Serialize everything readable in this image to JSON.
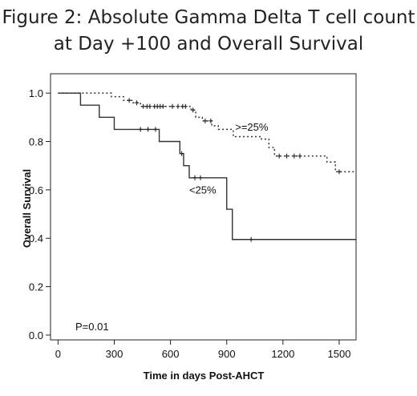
{
  "chart_data": {
    "type": "line",
    "subtype": "kaplan-meier",
    "title_lines": [
      "Figure 2: Absolute Gamma Delta T cell count",
      "at Day +100 and Overall Survival"
    ],
    "xlabel": "Time in days Post-AHCT",
    "ylabel": "Overall Survival",
    "xlim": [
      -40,
      1590
    ],
    "ylim": [
      -0.02,
      1.08
    ],
    "x_ticks": [
      0,
      300,
      600,
      900,
      1200,
      1500
    ],
    "y_ticks": [
      0.0,
      0.2,
      0.4,
      0.6,
      0.8,
      1.0
    ],
    "y_tick_labels": [
      "0.0",
      "0.2",
      "0.4",
      "0.6",
      "0.8",
      "1.0"
    ],
    "grid": false,
    "annotation": "P=0.01",
    "series": [
      {
        "name": ">=25%",
        "line_style": "dotted",
        "steps": [
          [
            0,
            1.0
          ],
          [
            260,
            1.0
          ],
          [
            285,
            0.985
          ],
          [
            350,
            0.97
          ],
          [
            400,
            0.96
          ],
          [
            440,
            0.945
          ],
          [
            700,
            0.945
          ],
          [
            710,
            0.93
          ],
          [
            735,
            0.9
          ],
          [
            770,
            0.885
          ],
          [
            820,
            0.865
          ],
          [
            855,
            0.85
          ],
          [
            935,
            0.82
          ],
          [
            1050,
            0.82
          ],
          [
            1085,
            0.81
          ],
          [
            1125,
            0.775
          ],
          [
            1155,
            0.74
          ],
          [
            1405,
            0.74
          ],
          [
            1435,
            0.715
          ],
          [
            1480,
            0.675
          ],
          [
            1590,
            0.675
          ]
        ],
        "censor_x": [
          380,
          420,
          455,
          475,
          490,
          515,
          530,
          545,
          560,
          610,
          640,
          665,
          680,
          720,
          785,
          815,
          1180,
          1220,
          1260,
          1290,
          1500
        ]
      },
      {
        "name": "<25%",
        "line_style": "solid",
        "steps": [
          [
            0,
            1.0
          ],
          [
            120,
            1.0
          ],
          [
            120,
            0.95
          ],
          [
            220,
            0.95
          ],
          [
            220,
            0.9
          ],
          [
            300,
            0.9
          ],
          [
            300,
            0.85
          ],
          [
            540,
            0.85
          ],
          [
            540,
            0.8
          ],
          [
            650,
            0.8
          ],
          [
            650,
            0.75
          ],
          [
            670,
            0.75
          ],
          [
            670,
            0.7
          ],
          [
            700,
            0.7
          ],
          [
            700,
            0.65
          ],
          [
            900,
            0.65
          ],
          [
            900,
            0.52
          ],
          [
            930,
            0.52
          ],
          [
            930,
            0.395
          ],
          [
            1590,
            0.395
          ]
        ],
        "censor_x": [
          440,
          480,
          520,
          660,
          730,
          760,
          1030
        ]
      }
    ],
    "series_labels": [
      {
        "text": ">=25%",
        "x": 945,
        "y": 0.845
      },
      {
        "text": "<25%",
        "x": 700,
        "y": 0.585
      }
    ]
  }
}
